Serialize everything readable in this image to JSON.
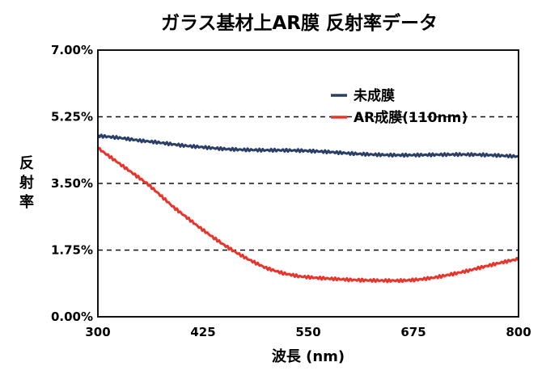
{
  "chart_data": {
    "type": "line",
    "title": "ガラス基材上AR膜 反射率データ",
    "xlabel": "波長 (nm)",
    "ylabel": "反射率",
    "xlim": [
      300,
      800
    ],
    "ylim": [
      0,
      7
    ],
    "xticks": [
      "300",
      "425",
      "550",
      "675",
      "800"
    ],
    "yticks": [
      "0.00%",
      "1.75%",
      "3.50%",
      "5.25%",
      "7.00%"
    ],
    "grid": "dashed horizontal lines at 1.75%, 3.50%, 5.25%",
    "legend_position": "top-right",
    "series": [
      {
        "name": "未成膜",
        "color": "#2b3f66",
        "x": [
          300,
          325,
          350,
          375,
          400,
          425,
          450,
          475,
          500,
          525,
          550,
          575,
          600,
          625,
          650,
          675,
          700,
          725,
          750,
          775,
          800
        ],
        "y": [
          4.75,
          4.68,
          4.6,
          4.55,
          4.5,
          4.47,
          4.43,
          4.4,
          4.37,
          4.35,
          4.33,
          4.31,
          4.29,
          4.28,
          4.27,
          4.26,
          4.25,
          4.24,
          4.23,
          4.22,
          4.21
        ]
      },
      {
        "name": "AR成膜(110nm)",
        "color": "#e8352c",
        "x": [
          300,
          315,
          330,
          345,
          360,
          375,
          390,
          405,
          420,
          435,
          450,
          465,
          480,
          500,
          520,
          540,
          560,
          580,
          600,
          620,
          640,
          660,
          680,
          700,
          720,
          740,
          760,
          780,
          800
        ],
        "y": [
          4.45,
          4.2,
          3.95,
          3.7,
          3.45,
          3.15,
          2.85,
          2.6,
          2.35,
          2.12,
          1.9,
          1.7,
          1.52,
          1.3,
          1.15,
          1.05,
          1.0,
          0.97,
          0.95,
          0.95,
          0.96,
          0.97,
          1.0,
          1.05,
          1.12,
          1.2,
          1.3,
          1.4,
          1.5
        ]
      }
    ]
  }
}
